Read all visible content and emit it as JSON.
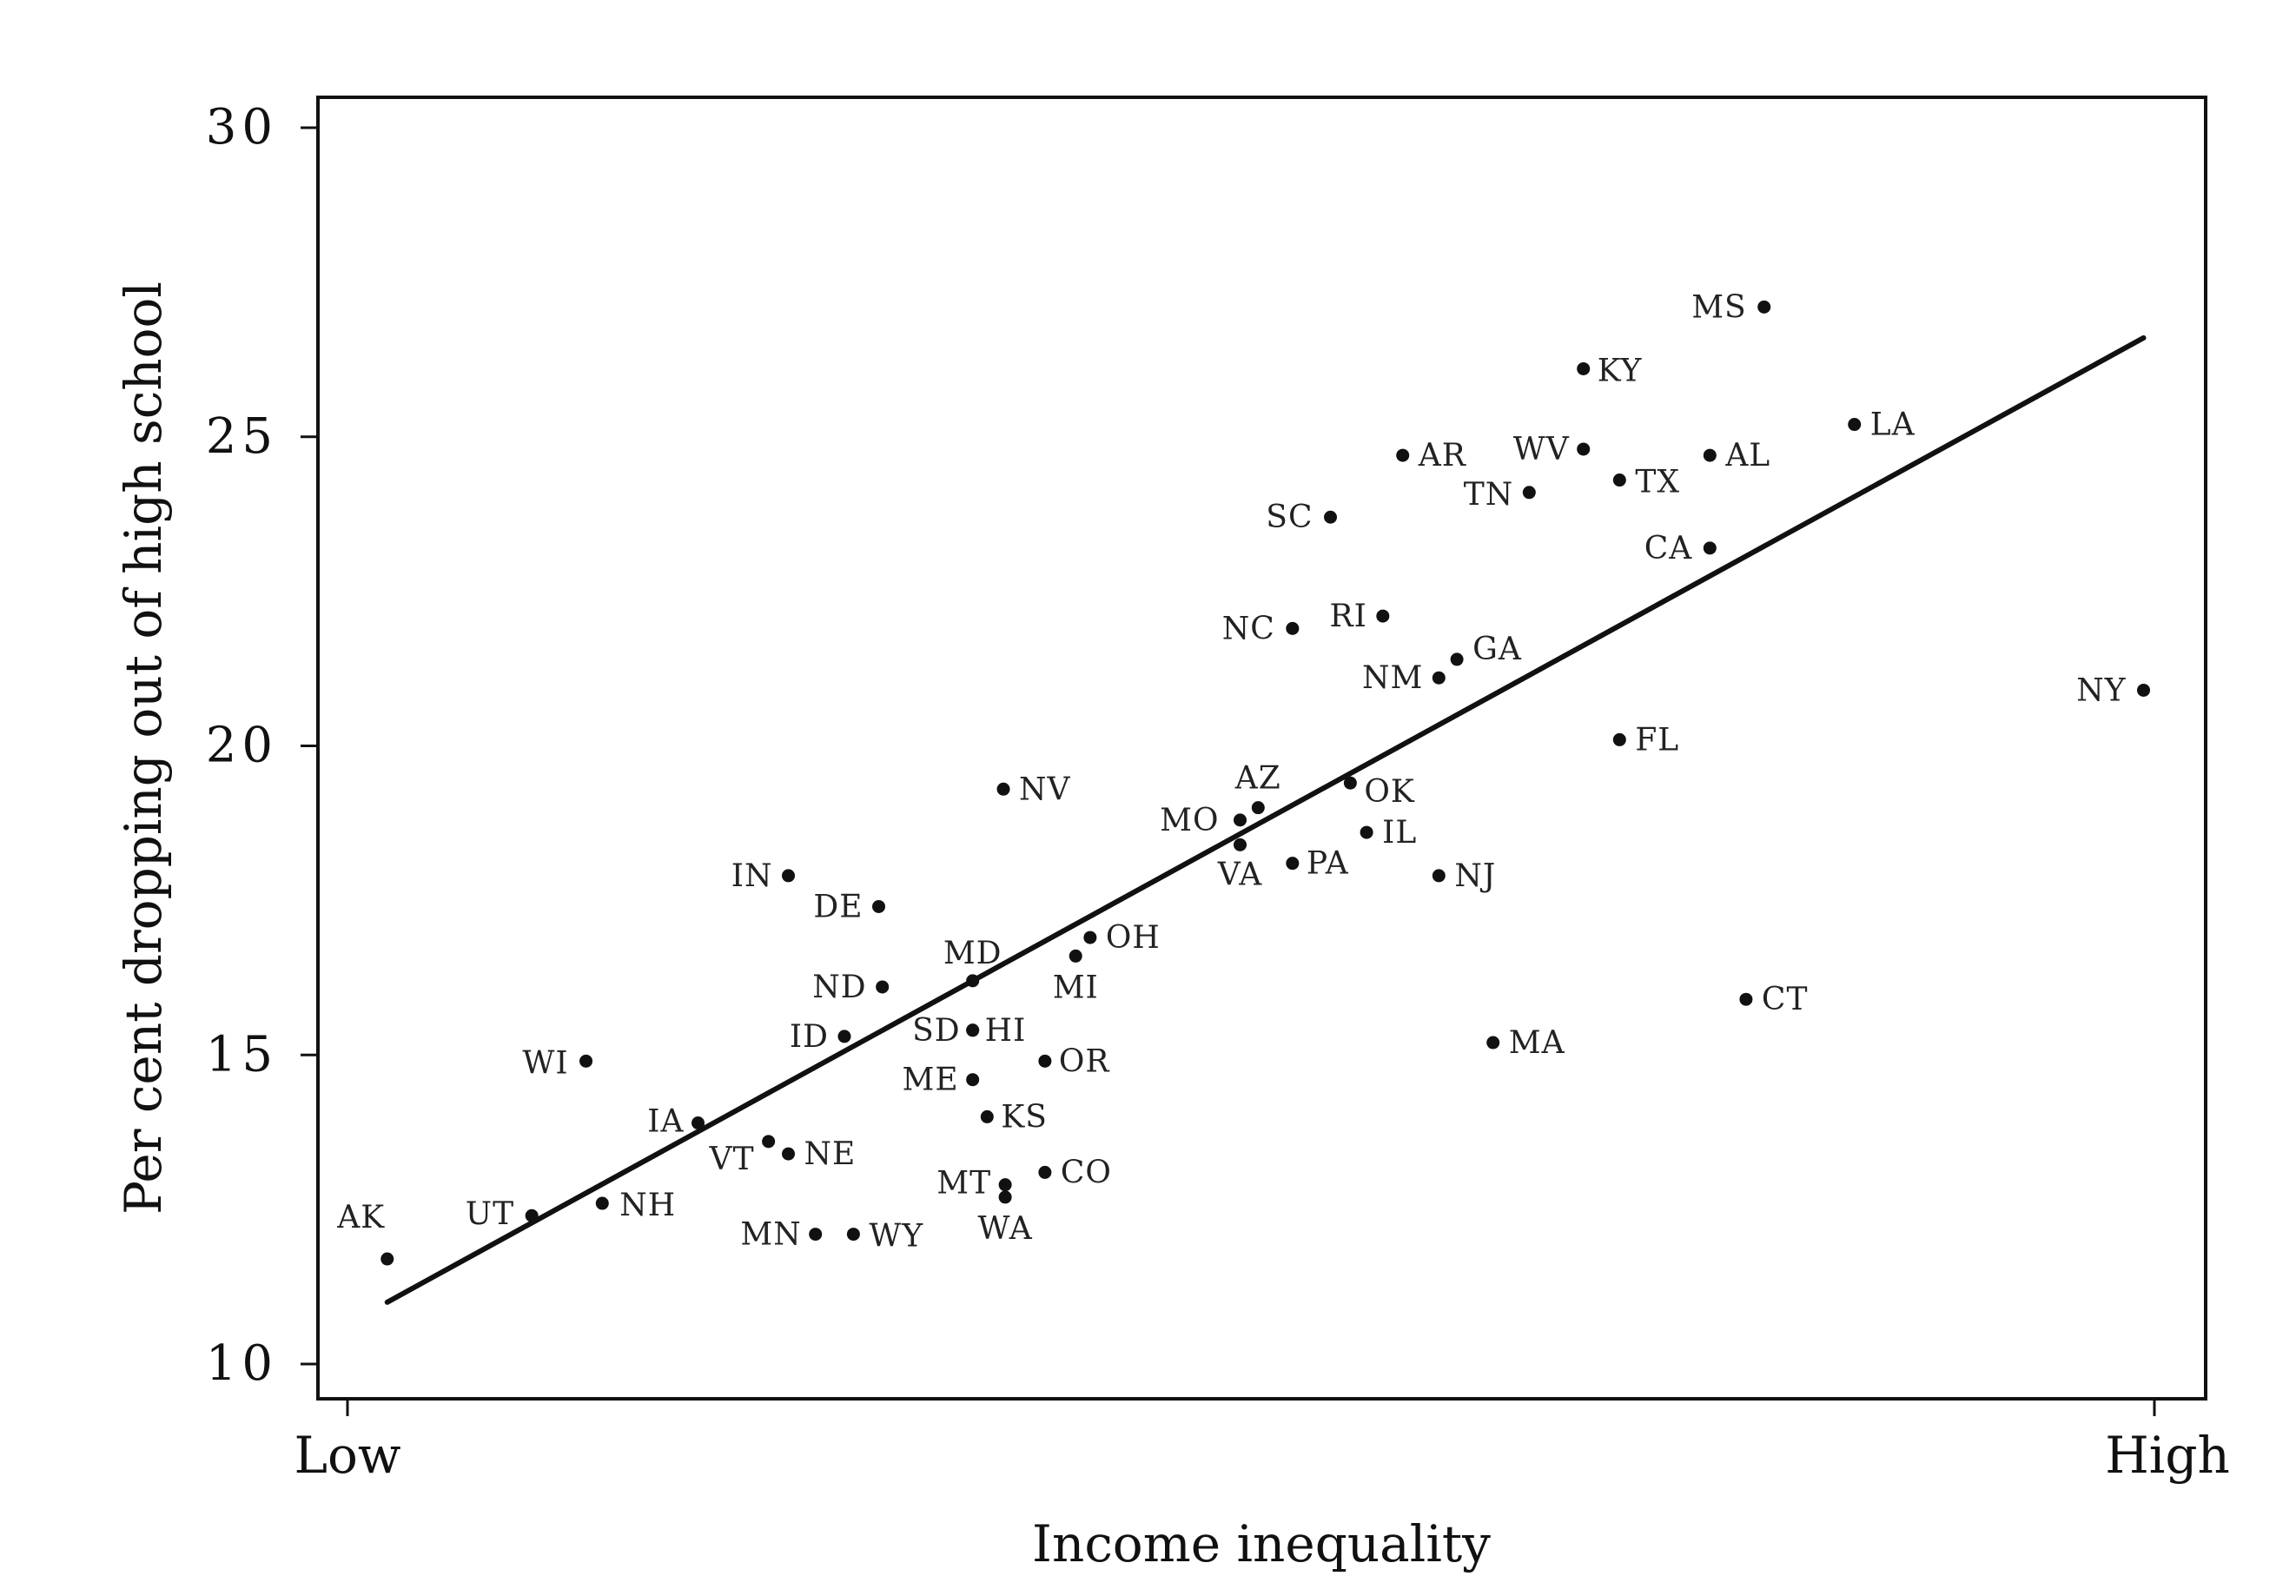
{
  "chart_data": {
    "type": "scatter",
    "title": "",
    "xlabel": "Income inequality",
    "ylabel": "Per cent dropping out of high school",
    "x_tick_labels": {
      "low": "Low",
      "high": "High"
    },
    "xlim": [
      0,
      100
    ],
    "ylim": [
      10,
      30
    ],
    "yticks": [
      10,
      15,
      20,
      25,
      30
    ],
    "ytick_labels": [
      "10",
      "15",
      "20",
      "25",
      "30"
    ],
    "grid": false,
    "legend": "none",
    "trend_line": {
      "x": [
        2.2,
        99.4
      ],
      "y": [
        11.0,
        26.6
      ]
    },
    "points": [
      {
        "label": "AK",
        "x": 2.2,
        "y": 11.7
      },
      {
        "label": "UT",
        "x": 10.2,
        "y": 12.4
      },
      {
        "label": "NH",
        "x": 14.1,
        "y": 12.6
      },
      {
        "label": "WI",
        "x": 13.2,
        "y": 14.9
      },
      {
        "label": "IA",
        "x": 19.4,
        "y": 13.9
      },
      {
        "label": "VT",
        "x": 23.3,
        "y": 13.6
      },
      {
        "label": "NE",
        "x": 24.4,
        "y": 13.4
      },
      {
        "label": "MN",
        "x": 25.9,
        "y": 12.1
      },
      {
        "label": "WY",
        "x": 28.0,
        "y": 12.1
      },
      {
        "label": "IN",
        "x": 24.4,
        "y": 17.9
      },
      {
        "label": "DE",
        "x": 29.4,
        "y": 17.4
      },
      {
        "label": "ND",
        "x": 29.6,
        "y": 16.1
      },
      {
        "label": "ID",
        "x": 27.5,
        "y": 15.3
      },
      {
        "label": "MD",
        "x": 34.6,
        "y": 16.2
      },
      {
        "label": "SD",
        "x": 34.6,
        "y": 15.4
      },
      {
        "label": "HI",
        "x": 34.6,
        "y": 15.4
      },
      {
        "label": "ME",
        "x": 34.6,
        "y": 14.6
      },
      {
        "label": "KS",
        "x": 35.4,
        "y": 14.0
      },
      {
        "label": "MT",
        "x": 36.4,
        "y": 12.9
      },
      {
        "label": "WA",
        "x": 36.4,
        "y": 12.7
      },
      {
        "label": "CO",
        "x": 38.6,
        "y": 13.1
      },
      {
        "label": "OR",
        "x": 38.6,
        "y": 14.9
      },
      {
        "label": "MI",
        "x": 40.3,
        "y": 16.6
      },
      {
        "label": "OH",
        "x": 41.1,
        "y": 16.9
      },
      {
        "label": "NV",
        "x": 36.3,
        "y": 19.3
      },
      {
        "label": "MO",
        "x": 49.4,
        "y": 18.8
      },
      {
        "label": "AZ",
        "x": 50.4,
        "y": 19.0
      },
      {
        "label": "VA",
        "x": 49.4,
        "y": 18.4
      },
      {
        "label": "PA",
        "x": 52.3,
        "y": 18.1
      },
      {
        "label": "OK",
        "x": 55.5,
        "y": 19.4
      },
      {
        "label": "IL",
        "x": 56.4,
        "y": 18.6
      },
      {
        "label": "NJ",
        "x": 60.4,
        "y": 17.9
      },
      {
        "label": "NC",
        "x": 52.3,
        "y": 21.9
      },
      {
        "label": "RI",
        "x": 57.3,
        "y": 22.1
      },
      {
        "label": "NM",
        "x": 60.4,
        "y": 21.1
      },
      {
        "label": "GA",
        "x": 61.4,
        "y": 21.4
      },
      {
        "label": "SC",
        "x": 54.4,
        "y": 23.7
      },
      {
        "label": "AR",
        "x": 58.4,
        "y": 24.7
      },
      {
        "label": "TN",
        "x": 65.4,
        "y": 24.1
      },
      {
        "label": "WV",
        "x": 68.4,
        "y": 24.8
      },
      {
        "label": "TX",
        "x": 70.4,
        "y": 24.3
      },
      {
        "label": "KY",
        "x": 68.4,
        "y": 26.1
      },
      {
        "label": "MS",
        "x": 78.4,
        "y": 27.1
      },
      {
        "label": "AL",
        "x": 75.4,
        "y": 24.7
      },
      {
        "label": "LA",
        "x": 83.4,
        "y": 25.2
      },
      {
        "label": "CA",
        "x": 75.4,
        "y": 23.2
      },
      {
        "label": "FL",
        "x": 70.4,
        "y": 20.1
      },
      {
        "label": "NY",
        "x": 99.4,
        "y": 20.9
      },
      {
        "label": "CT",
        "x": 77.4,
        "y": 15.9
      },
      {
        "label": "MA",
        "x": 63.4,
        "y": 15.2
      }
    ]
  }
}
